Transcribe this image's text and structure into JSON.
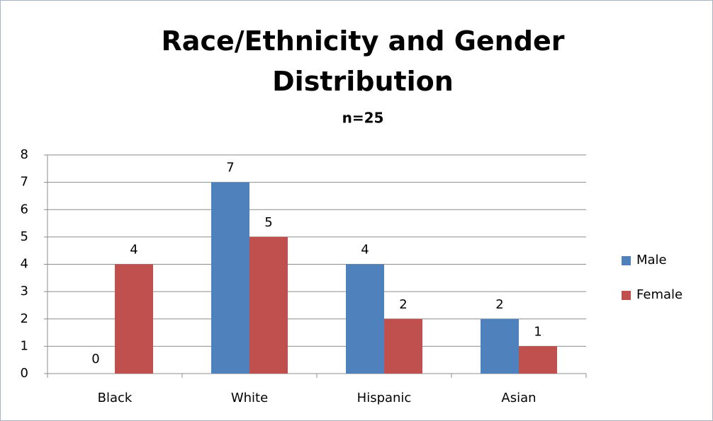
{
  "chart_data": {
    "type": "bar",
    "title": "Race/Ethnicity and Gender Distribution",
    "subtitle": "n=25",
    "categories": [
      "Black",
      "White",
      "Hispanic",
      "Asian"
    ],
    "series": [
      {
        "name": "Male",
        "color": "#4f81bd",
        "values": [
          0,
          7,
          4,
          2
        ]
      },
      {
        "name": "Female",
        "color": "#c0504d",
        "values": [
          4,
          5,
          2,
          1
        ]
      }
    ],
    "ylim": [
      0,
      8
    ],
    "yticks": [
      0,
      1,
      2,
      3,
      4,
      5,
      6,
      7,
      8
    ],
    "grid": true,
    "legend": "right"
  }
}
